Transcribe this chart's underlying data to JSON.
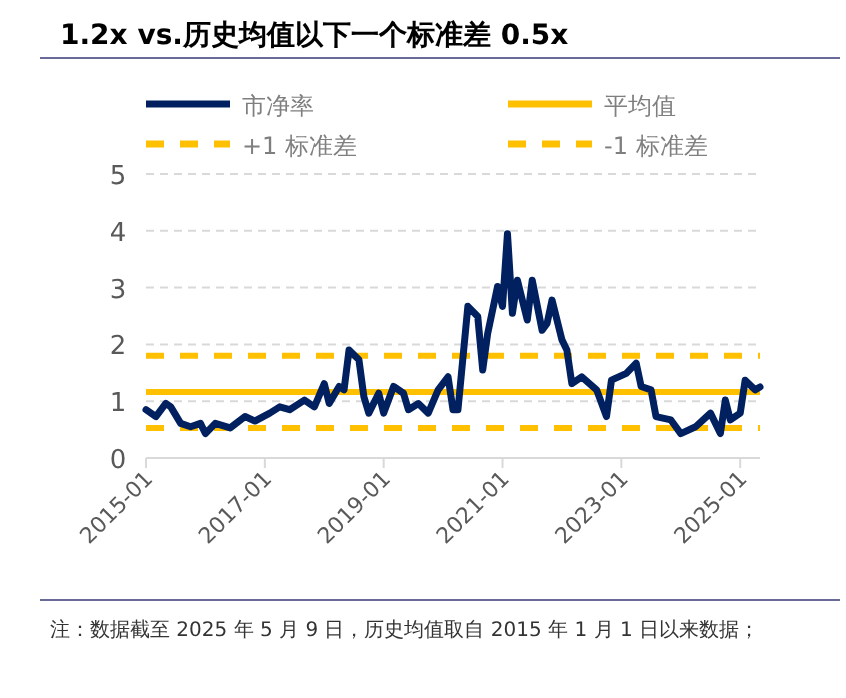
{
  "chart_data": {
    "type": "line",
    "title": "1.2x vs.历史均值以下一个标准差 0.5x",
    "x": [
      "2015-01",
      "2015-03",
      "2015-05",
      "2015-06",
      "2015-08",
      "2015-10",
      "2015-12",
      "2016-01",
      "2016-03",
      "2016-06",
      "2016-09",
      "2016-11",
      "2017-02",
      "2017-04",
      "2017-06",
      "2017-09",
      "2017-11",
      "2018-01",
      "2018-02",
      "2018-04",
      "2018-05",
      "2018-06",
      "2018-08",
      "2018-09",
      "2018-10",
      "2018-12",
      "2019-01",
      "2019-03",
      "2019-05",
      "2019-06",
      "2019-08",
      "2019-10",
      "2019-12",
      "2020-02",
      "2020-03",
      "2020-04",
      "2020-06",
      "2020-08",
      "2020-09",
      "2020-10",
      "2020-12",
      "2021-01",
      "2021-02",
      "2021-03",
      "2021-04",
      "2021-06",
      "2021-07",
      "2021-09",
      "2021-10",
      "2021-11",
      "2022-01",
      "2022-02",
      "2022-03",
      "2022-05",
      "2022-08",
      "2022-10",
      "2022-11",
      "2023-02",
      "2023-04",
      "2023-05",
      "2023-07",
      "2023-08",
      "2023-11",
      "2024-01",
      "2024-04",
      "2024-07",
      "2024-09",
      "2024-10",
      "2024-11",
      "2025-01",
      "2025-02",
      "2025-04",
      "2025-05"
    ],
    "series": [
      {
        "name": "市净率",
        "color": "#002060",
        "values": [
          0.85,
          0.73,
          0.96,
          0.9,
          0.61,
          0.55,
          0.61,
          0.43,
          0.61,
          0.53,
          0.73,
          0.65,
          0.79,
          0.9,
          0.85,
          1.02,
          0.9,
          1.31,
          0.96,
          1.26,
          1.2,
          1.9,
          1.73,
          1.08,
          0.79,
          1.14,
          0.79,
          1.26,
          1.14,
          0.85,
          0.96,
          0.79,
          1.2,
          1.43,
          0.85,
          0.85,
          2.67,
          2.49,
          1.55,
          2.19,
          3.02,
          2.67,
          3.95,
          2.55,
          3.13,
          2.43,
          3.13,
          2.25,
          2.37,
          2.78,
          2.08,
          1.9,
          1.31,
          1.43,
          1.2,
          0.73,
          1.37,
          1.49,
          1.67,
          1.26,
          1.2,
          0.73,
          0.67,
          0.43,
          0.55,
          0.79,
          0.43,
          1.02,
          0.67,
          0.79,
          1.37,
          1.2,
          1.25
        ]
      }
    ],
    "ref_lines": [
      {
        "axis": "y",
        "value": 1.16,
        "label": "平均值",
        "color": "#ffc000",
        "line_style": "solid"
      },
      {
        "axis": "y",
        "value": 1.8,
        "label": "+1 标准差",
        "color": "#ffc000",
        "line_style": "dashed"
      },
      {
        "axis": "y",
        "value": 0.53,
        "label": "-1 标准差",
        "color": "#ffc000",
        "line_style": "dashed"
      }
    ],
    "xlim": [
      "2015-01",
      "2025-05"
    ],
    "xticks": [
      "2015-01",
      "2017-01",
      "2019-01",
      "2021-01",
      "2023-01",
      "2025-01"
    ],
    "ylim": [
      0,
      5
    ],
    "yticks": [
      0,
      1,
      2,
      3,
      4,
      5
    ],
    "grid": "y",
    "legend": "top",
    "line_style": "solid",
    "marker": "none",
    "annotations": [
      "注：数据截至 2025 年 5 月 9 日，历史均值取自 2015 年 1 月 1 日以来数据；"
    ]
  }
}
